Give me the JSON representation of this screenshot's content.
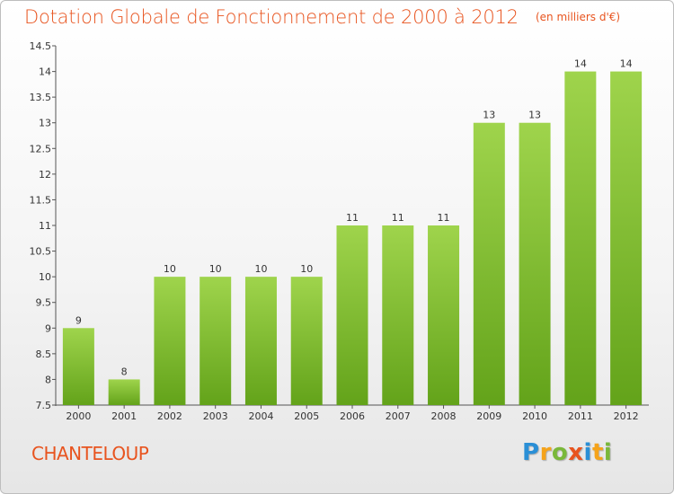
{
  "header": {
    "title": "Dotation Globale de Fonctionnement de 2000 à 2012",
    "subtitle": "(en milliers d'€)"
  },
  "footer": {
    "commune": "CHANTELOUP",
    "logo_text": "Proxiti"
  },
  "colors": {
    "title": "#e8541f",
    "bar_top": "#9fd44c",
    "bar_bottom": "#63a31a",
    "axis": "#555555"
  },
  "chart_data": {
    "type": "bar",
    "title": "Dotation Globale de Fonctionnement de 2000 à 2012",
    "subtitle": "(en milliers d'€)",
    "xlabel": "",
    "ylabel": "",
    "categories": [
      "2000",
      "2001",
      "2002",
      "2003",
      "2004",
      "2005",
      "2006",
      "2007",
      "2008",
      "2009",
      "2010",
      "2011",
      "2012"
    ],
    "values": [
      9,
      8,
      10,
      10,
      10,
      10,
      11,
      11,
      11,
      13,
      13,
      14,
      14
    ],
    "data_labels": [
      "9",
      "8",
      "10",
      "10",
      "10",
      "10",
      "11",
      "11",
      "11",
      "13",
      "13",
      "14",
      "14"
    ],
    "ylim": [
      7.5,
      14.5
    ],
    "yticks": [
      "7.5",
      "8",
      "8.5",
      "9",
      "9.5",
      "10",
      "10.5",
      "11",
      "11.5",
      "12",
      "12.5",
      "13",
      "13.5",
      "14",
      "14.5"
    ],
    "grid": false,
    "legend": "none"
  }
}
